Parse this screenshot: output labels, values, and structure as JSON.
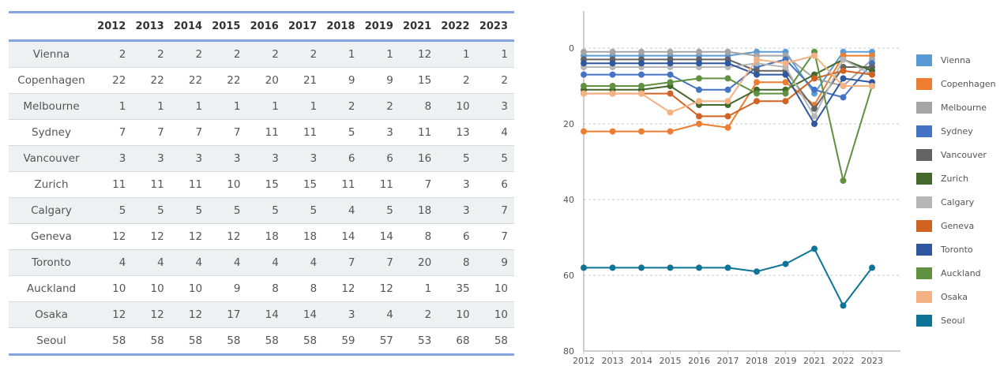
{
  "table": {
    "years": [
      "2012",
      "2013",
      "2014",
      "2015",
      "2016",
      "2017",
      "2018",
      "2019",
      "2021",
      "2022",
      "2023"
    ],
    "rows": [
      {
        "city": "Vienna",
        "values": [
          2,
          2,
          2,
          2,
          2,
          2,
          1,
          1,
          12,
          1,
          1
        ]
      },
      {
        "city": "Copenhagen",
        "values": [
          22,
          22,
          22,
          22,
          20,
          21,
          9,
          9,
          15,
          2,
          2
        ]
      },
      {
        "city": "Melbourne",
        "values": [
          1,
          1,
          1,
          1,
          1,
          1,
          2,
          2,
          8,
          10,
          3
        ]
      },
      {
        "city": "Sydney",
        "values": [
          7,
          7,
          7,
          7,
          11,
          11,
          5,
          3,
          11,
          13,
          4
        ]
      },
      {
        "city": "Vancouver",
        "values": [
          3,
          3,
          3,
          3,
          3,
          3,
          6,
          6,
          16,
          5,
          5
        ]
      },
      {
        "city": "Zurich",
        "values": [
          11,
          11,
          11,
          10,
          15,
          15,
          11,
          11,
          7,
          3,
          6
        ]
      },
      {
        "city": "Calgary",
        "values": [
          5,
          5,
          5,
          5,
          5,
          5,
          4,
          5,
          18,
          3,
          7
        ]
      },
      {
        "city": "Geneva",
        "values": [
          12,
          12,
          12,
          12,
          18,
          18,
          14,
          14,
          8,
          6,
          7
        ]
      },
      {
        "city": "Toronto",
        "values": [
          4,
          4,
          4,
          4,
          4,
          4,
          7,
          7,
          20,
          8,
          9
        ]
      },
      {
        "city": "Auckland",
        "values": [
          10,
          10,
          10,
          9,
          8,
          8,
          12,
          12,
          1,
          35,
          10
        ]
      },
      {
        "city": "Osaka",
        "values": [
          12,
          12,
          12,
          17,
          14,
          14,
          3,
          4,
          2,
          10,
          10
        ]
      },
      {
        "city": "Seoul",
        "values": [
          58,
          58,
          58,
          58,
          58,
          58,
          59,
          57,
          53,
          68,
          58
        ]
      }
    ]
  },
  "chart_data": {
    "type": "line",
    "title": "",
    "xlabel": "",
    "ylabel": "",
    "x": [
      "2012",
      "2013",
      "2014",
      "2015",
      "2016",
      "2017",
      "2018",
      "2019",
      "2021",
      "2022",
      "2023"
    ],
    "y_inverted": true,
    "ylim": [
      -10,
      80
    ],
    "yticks": [
      0,
      20,
      40,
      60,
      80
    ],
    "grid": "horizontal-dashed",
    "legend_position": "right",
    "series": [
      {
        "name": "Vienna",
        "color": "#5b9bd5",
        "values": [
          2,
          2,
          2,
          2,
          2,
          2,
          1,
          1,
          12,
          1,
          1
        ]
      },
      {
        "name": "Copenhagen",
        "color": "#ed7d31",
        "values": [
          22,
          22,
          22,
          22,
          20,
          21,
          9,
          9,
          15,
          2,
          2
        ]
      },
      {
        "name": "Melbourne",
        "color": "#a5a5a5",
        "values": [
          1,
          1,
          1,
          1,
          1,
          1,
          2,
          2,
          8,
          10,
          3
        ]
      },
      {
        "name": "Sydney",
        "color": "#4472c4",
        "values": [
          7,
          7,
          7,
          7,
          11,
          11,
          5,
          3,
          11,
          13,
          4
        ]
      },
      {
        "name": "Vancouver",
        "color": "#636363",
        "values": [
          3,
          3,
          3,
          3,
          3,
          3,
          6,
          6,
          16,
          5,
          5
        ]
      },
      {
        "name": "Zurich",
        "color": "#43682b",
        "values": [
          11,
          11,
          11,
          10,
          15,
          15,
          11,
          11,
          7,
          3,
          6
        ]
      },
      {
        "name": "Calgary",
        "color": "#b7b7b7",
        "values": [
          5,
          5,
          5,
          5,
          5,
          5,
          4,
          5,
          18,
          3,
          7
        ]
      },
      {
        "name": "Geneva",
        "color": "#d06322",
        "values": [
          12,
          12,
          12,
          12,
          18,
          18,
          14,
          14,
          8,
          6,
          7
        ]
      },
      {
        "name": "Toronto",
        "color": "#2f57a0",
        "values": [
          4,
          4,
          4,
          4,
          4,
          4,
          7,
          7,
          20,
          8,
          9
        ]
      },
      {
        "name": "Auckland",
        "color": "#5f9140",
        "values": [
          10,
          10,
          10,
          9,
          8,
          8,
          12,
          12,
          1,
          35,
          10
        ]
      },
      {
        "name": "Osaka",
        "color": "#f4b183",
        "values": [
          12,
          12,
          12,
          17,
          14,
          14,
          3,
          4,
          2,
          10,
          10
        ]
      },
      {
        "name": "Seoul",
        "color": "#0e7497",
        "values": [
          58,
          58,
          58,
          58,
          58,
          58,
          59,
          57,
          53,
          68,
          58
        ]
      }
    ]
  }
}
